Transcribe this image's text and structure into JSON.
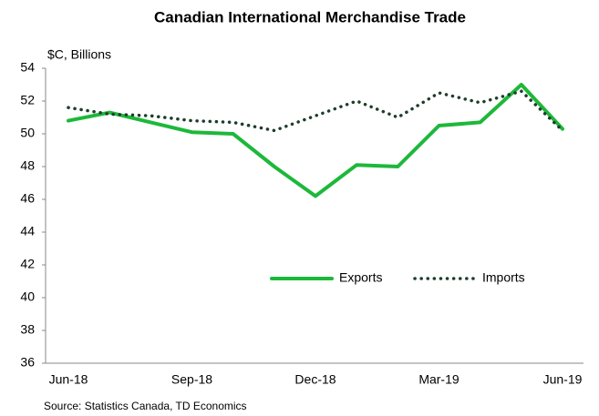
{
  "chart_data": {
    "type": "line",
    "title": "Canadian International Merchandise Trade",
    "y_label": "$C, Billions",
    "source": "Source: Statistics Canada, TD Economics",
    "categories": [
      "Jun-18",
      null,
      null,
      "Sep-18",
      null,
      null,
      "Dec-18",
      null,
      null,
      "Mar-19",
      null,
      null,
      "Jun-19"
    ],
    "series": [
      {
        "name": "Exports",
        "color": "#1db83a",
        "style": "solid",
        "values": [
          50.8,
          51.3,
          50.7,
          50.1,
          50.0,
          48.0,
          46.2,
          48.1,
          48.0,
          50.5,
          50.7,
          53.0,
          50.3
        ]
      },
      {
        "name": "Imports",
        "color": "#1e3d2a",
        "style": "dotted",
        "values": [
          51.6,
          51.2,
          51.1,
          50.8,
          50.7,
          50.2,
          51.1,
          52.0,
          51.0,
          52.5,
          51.9,
          52.6,
          50.2
        ]
      }
    ],
    "ylim": [
      36,
      54
    ],
    "yticks": [
      36,
      38,
      40,
      42,
      44,
      46,
      48,
      50,
      52,
      54
    ],
    "grid": false
  }
}
